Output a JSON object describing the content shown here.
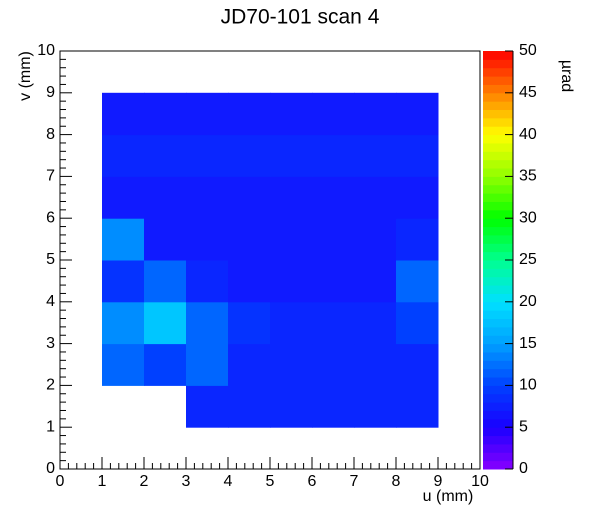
{
  "chart_data": {
    "type": "heatmap",
    "title": "JD70-101 scan 4",
    "xlabel": "u (mm)",
    "ylabel": "v (mm)",
    "colorbar_label": "µrad",
    "xlim": [
      0,
      10
    ],
    "ylim": [
      0,
      10
    ],
    "zlim": [
      0,
      50
    ],
    "xticks": [
      0,
      1,
      2,
      3,
      4,
      5,
      6,
      7,
      8,
      9,
      10
    ],
    "yticks": [
      0,
      1,
      2,
      3,
      4,
      5,
      6,
      7,
      8,
      9,
      10
    ],
    "zticks": [
      0,
      5,
      10,
      15,
      20,
      25,
      30,
      35,
      40,
      45,
      50
    ],
    "xbins": [
      0,
      1,
      2,
      3,
      4,
      5,
      6,
      7,
      8,
      9,
      10
    ],
    "ybins": [
      0,
      1,
      2,
      3,
      4,
      5,
      6,
      7,
      8,
      9,
      10
    ],
    "values": [
      [
        null,
        null,
        null,
        null,
        null,
        null,
        null,
        null,
        null,
        null
      ],
      [
        null,
        null,
        null,
        8,
        8,
        8,
        8,
        8,
        8,
        null
      ],
      [
        null,
        12,
        10,
        12,
        8,
        8,
        8,
        8,
        8,
        null
      ],
      [
        null,
        14,
        18,
        12,
        9,
        8,
        8,
        8,
        10,
        null
      ],
      [
        null,
        9,
        12,
        8,
        7,
        7,
        7,
        7,
        12,
        null
      ],
      [
        null,
        14,
        7,
        7,
        7,
        7,
        7,
        7,
        8,
        null
      ],
      [
        null,
        7,
        7,
        7,
        7,
        7,
        7,
        7,
        7,
        null
      ],
      [
        null,
        8,
        8,
        8,
        8,
        8,
        8,
        8,
        8,
        null
      ],
      [
        null,
        7,
        7,
        7,
        7,
        7,
        7,
        7,
        7,
        null
      ],
      [
        null,
        null,
        null,
        null,
        null,
        null,
        null,
        null,
        null,
        null
      ]
    ],
    "colorscale": [
      "#8800ff",
      "#1a00ff",
      "#0040ff",
      "#00a0ff",
      "#00e0ff",
      "#00ff90",
      "#00ff00",
      "#90ff00",
      "#ffff00",
      "#ff8000",
      "#ff0000"
    ]
  }
}
